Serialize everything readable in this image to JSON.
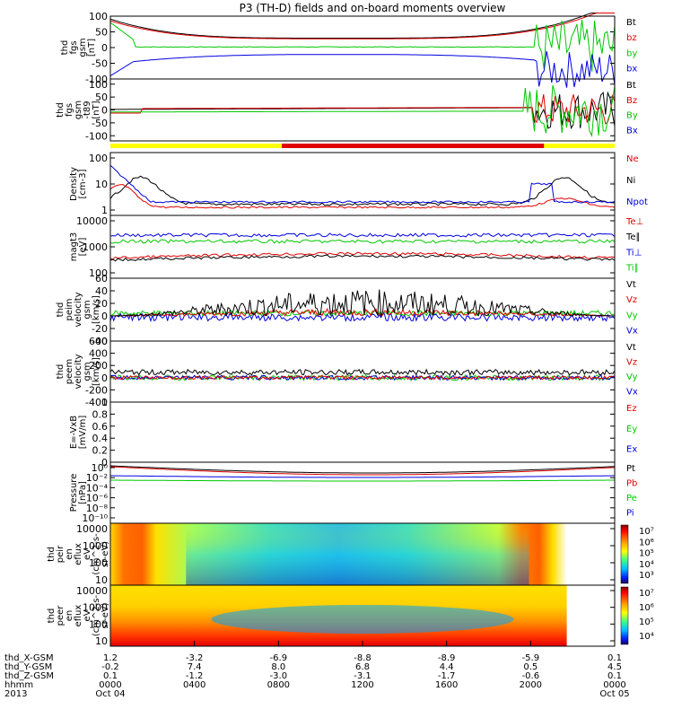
{
  "title": "P3 (TH-D) fields and on-board moments overview",
  "colors": {
    "black": "#000000",
    "red": "#e00000",
    "green": "#00c800",
    "blue": "#0000e0",
    "yellow": "#ffff00"
  },
  "chart_data": [
    {
      "type": "line",
      "ylabel": [
        "thd",
        "fgs",
        "gsm",
        "[nT]"
      ],
      "ylim": [
        -100,
        100
      ],
      "yticks": [
        100,
        50,
        0,
        -50,
        -100
      ],
      "legend": [
        "Bt",
        "bz",
        "by",
        "bx"
      ],
      "legend_colors": [
        "#000000",
        "#e00000",
        "#00c800",
        "#0000e0"
      ]
    },
    {
      "type": "line",
      "ylabel": [
        "thd",
        "fgs",
        "gsm",
        "-t89",
        "[nT]"
      ],
      "ylim": [
        -120,
        120
      ],
      "yticks": [
        100,
        50,
        0,
        -50,
        -100
      ],
      "legend": [
        "Bt",
        "Bz",
        "By",
        "Bx"
      ],
      "legend_colors": [
        "#000000",
        "#e00000",
        "#00c800",
        "#0000e0"
      ]
    },
    {
      "type": "line",
      "ylabel": [
        "Density",
        "[cm-3]"
      ],
      "scale": "log",
      "yticks": [
        "100",
        "10",
        "1"
      ],
      "legend": [
        "Ne",
        "Ni",
        "Npot"
      ],
      "legend_colors": [
        "#e00000",
        "#000000",
        "#0000e0"
      ]
    },
    {
      "type": "line",
      "ylabel": [
        "magt3",
        "[eV]"
      ],
      "scale": "log",
      "yticks": [
        "10000",
        "1000",
        "100"
      ],
      "legend": [
        "Te⊥",
        "Te∥",
        "Ti⊥",
        "Ti∥"
      ],
      "legend_colors": [
        "#e00000",
        "#000000",
        "#0000e0",
        "#00c800"
      ]
    },
    {
      "type": "line",
      "ylabel": [
        "thd",
        "peim",
        "velocity",
        "gsm",
        "[km/s]"
      ],
      "ylim": [
        -40,
        60
      ],
      "yticks": [
        60,
        40,
        20,
        0,
        -20,
        -40
      ],
      "legend": [
        "Vt",
        "Vz",
        "Vy",
        "Vx"
      ],
      "legend_colors": [
        "#000000",
        "#e00000",
        "#00c800",
        "#0000e0"
      ]
    },
    {
      "type": "line",
      "ylabel": [
        "thd",
        "peem",
        "velocity",
        "gsm",
        "[km/s]"
      ],
      "ylim": [
        -400,
        600
      ],
      "yticks": [
        600,
        400,
        200,
        0,
        -200,
        -400
      ],
      "legend": [
        "Vt",
        "Vz",
        "Vy",
        "Vx"
      ],
      "legend_colors": [
        "#000000",
        "#e00000",
        "#00c800",
        "#0000e0"
      ]
    },
    {
      "type": "line",
      "ylabel": [
        "E=-VxB",
        "[mV/m]"
      ],
      "ylim": [
        0,
        1
      ],
      "yticks": [
        1.0,
        0.8,
        0.6,
        0.4,
        0.2,
        0.0
      ],
      "legend": [
        "Ez",
        "Ey",
        "Ex"
      ],
      "legend_colors": [
        "#e00000",
        "#00c800",
        "#0000e0"
      ]
    },
    {
      "type": "line",
      "ylabel": [
        "Pressure",
        "[nPa]"
      ],
      "scale": "log",
      "yticks": [
        "10⁰",
        "10⁻²",
        "10⁻⁴",
        "10⁻⁶",
        "10⁻⁸",
        "10⁻¹⁰"
      ],
      "legend": [
        "Pt",
        "Pb",
        "Pe",
        "Pi"
      ],
      "legend_colors": [
        "#000000",
        "#e00000",
        "#00c800",
        "#0000e0"
      ]
    },
    {
      "type": "heatmap",
      "ylabel": [
        "thd",
        "peir",
        "en",
        "eflux",
        "eV",
        "(cm^2-s-",
        "sr-eV)"
      ],
      "scale": "log",
      "yticks": [
        "10000",
        "1000",
        "100",
        "10"
      ],
      "colorbar_ticks": [
        "10⁷",
        "10⁶",
        "10⁵",
        "10⁴",
        "10³"
      ]
    },
    {
      "type": "heatmap",
      "ylabel": [
        "thd",
        "peer",
        "en",
        "eflux",
        "eV",
        "(cm^2-s-",
        "sr-eV)"
      ],
      "scale": "log",
      "yticks": [
        "10000",
        "1000",
        "100",
        "10"
      ],
      "colorbar_ticks": [
        "10⁷",
        "10⁶",
        "10⁵",
        "10⁴"
      ]
    }
  ],
  "xaxis": {
    "row_labels": [
      "thd_X-GSM",
      "thd_Y-GSM",
      "thd_Z-GSM",
      "hhmm",
      "2013"
    ],
    "columns": [
      {
        "values": [
          "1.2",
          "-0.2",
          "0.1",
          "0000",
          "Oct 04"
        ]
      },
      {
        "values": [
          "-3.2",
          "7.4",
          "-1.2",
          "0400",
          ""
        ]
      },
      {
        "values": [
          "-6.9",
          "8.0",
          "-3.0",
          "0800",
          ""
        ]
      },
      {
        "values": [
          "-8.8",
          "6.8",
          "-3.1",
          "1200",
          ""
        ]
      },
      {
        "values": [
          "-8.9",
          "4.4",
          "-1.7",
          "1600",
          ""
        ]
      },
      {
        "values": [
          "-5.9",
          "0.5",
          "-0.6",
          "2000",
          ""
        ]
      },
      {
        "values": [
          "0.1",
          "4.5",
          "0.1",
          "0000",
          "Oct 05"
        ]
      }
    ]
  }
}
